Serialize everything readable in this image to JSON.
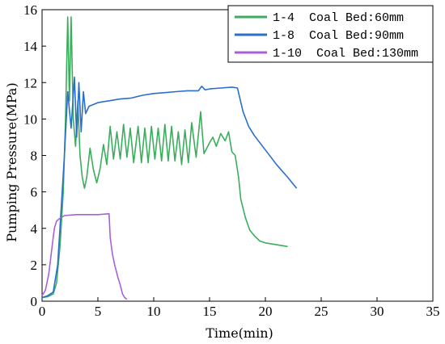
{
  "chart_data": {
    "type": "line",
    "xlabel": "Time(min)",
    "ylabel": "Pumping Pressure(MPa)",
    "xlim": [
      0,
      35
    ],
    "ylim": [
      0,
      16
    ],
    "xticks": [
      0,
      5,
      10,
      15,
      20,
      25,
      30,
      35
    ],
    "yticks": [
      0,
      2,
      4,
      6,
      8,
      10,
      12,
      14,
      16
    ],
    "grid": false,
    "legend_position": "top-right",
    "series": [
      {
        "name": "1-4  Coal Bed:60mm",
        "color": "#3aae5c",
        "points": [
          [
            0,
            0.2
          ],
          [
            0.5,
            0.25
          ],
          [
            1,
            0.4
          ],
          [
            1.3,
            1
          ],
          [
            1.6,
            3
          ],
          [
            1.9,
            6
          ],
          [
            2.1,
            10
          ],
          [
            2.3,
            15.6
          ],
          [
            2.45,
            11
          ],
          [
            2.6,
            15.6
          ],
          [
            2.8,
            10
          ],
          [
            3,
            8.5
          ],
          [
            3.2,
            11
          ],
          [
            3.4,
            8
          ],
          [
            3.6,
            6.8
          ],
          [
            3.8,
            6.2
          ],
          [
            4.0,
            6.8
          ],
          [
            4.3,
            8.4
          ],
          [
            4.6,
            7.2
          ],
          [
            4.9,
            6.5
          ],
          [
            5.2,
            7.3
          ],
          [
            5.5,
            8.6
          ],
          [
            5.8,
            7.5
          ],
          [
            6.1,
            9.6
          ],
          [
            6.4,
            7.8
          ],
          [
            6.7,
            9.3
          ],
          [
            7.0,
            7.8
          ],
          [
            7.3,
            9.7
          ],
          [
            7.6,
            7.9
          ],
          [
            7.9,
            9.5
          ],
          [
            8.2,
            7.6
          ],
          [
            8.6,
            9.6
          ],
          [
            8.9,
            7.6
          ],
          [
            9.2,
            9.5
          ],
          [
            9.5,
            7.6
          ],
          [
            9.8,
            9.6
          ],
          [
            10.1,
            7.8
          ],
          [
            10.4,
            9.5
          ],
          [
            10.7,
            7.7
          ],
          [
            11.0,
            9.7
          ],
          [
            11.3,
            7.7
          ],
          [
            11.6,
            9.6
          ],
          [
            11.9,
            7.7
          ],
          [
            12.2,
            9.3
          ],
          [
            12.5,
            7.5
          ],
          [
            12.8,
            9.4
          ],
          [
            13.1,
            7.6
          ],
          [
            13.4,
            9.8
          ],
          [
            13.8,
            7.9
          ],
          [
            14.2,
            10.4
          ],
          [
            14.5,
            8.1
          ],
          [
            15.0,
            8.7
          ],
          [
            15.3,
            9.0
          ],
          [
            15.6,
            8.5
          ],
          [
            16.0,
            9.2
          ],
          [
            16.4,
            8.8
          ],
          [
            16.7,
            9.3
          ],
          [
            17.0,
            8.2
          ],
          [
            17.3,
            8.0
          ],
          [
            17.6,
            6.8
          ],
          [
            17.8,
            5.6
          ],
          [
            18.2,
            4.6
          ],
          [
            18.6,
            3.9
          ],
          [
            19.0,
            3.6
          ],
          [
            19.5,
            3.3
          ],
          [
            20.0,
            3.2
          ],
          [
            20.5,
            3.15
          ],
          [
            21.0,
            3.1
          ],
          [
            22.0,
            3.0
          ]
        ]
      },
      {
        "name": "1-8  Coal Bed:90mm",
        "color": "#2a6fcc",
        "points": [
          [
            0,
            0.2
          ],
          [
            0.5,
            0.3
          ],
          [
            1,
            0.5
          ],
          [
            1.4,
            2
          ],
          [
            1.7,
            5
          ],
          [
            2.0,
            8
          ],
          [
            2.3,
            11.5
          ],
          [
            2.6,
            9.5
          ],
          [
            2.9,
            12.3
          ],
          [
            3.1,
            9.0
          ],
          [
            3.3,
            12
          ],
          [
            3.5,
            9.3
          ],
          [
            3.7,
            11.5
          ],
          [
            3.9,
            10.3
          ],
          [
            4.2,
            10.7
          ],
          [
            5.0,
            10.9
          ],
          [
            6.0,
            11.0
          ],
          [
            7.0,
            11.1
          ],
          [
            8.0,
            11.15
          ],
          [
            9.0,
            11.3
          ],
          [
            10.0,
            11.4
          ],
          [
            11.0,
            11.45
          ],
          [
            12.0,
            11.5
          ],
          [
            13.0,
            11.55
          ],
          [
            14.0,
            11.55
          ],
          [
            14.3,
            11.8
          ],
          [
            14.6,
            11.6
          ],
          [
            15.0,
            11.65
          ],
          [
            16.0,
            11.7
          ],
          [
            17.0,
            11.75
          ],
          [
            17.5,
            11.7
          ],
          [
            18.0,
            10.4
          ],
          [
            18.5,
            9.6
          ],
          [
            19.0,
            9.1
          ],
          [
            20.0,
            8.3
          ],
          [
            21.0,
            7.5
          ],
          [
            22.0,
            6.8
          ],
          [
            22.8,
            6.2
          ]
        ]
      },
      {
        "name": "1-10  Coal Bed:130mm",
        "color": "#a860d8",
        "points": [
          [
            0,
            0.3
          ],
          [
            0.3,
            0.6
          ],
          [
            0.6,
            1.5
          ],
          [
            0.9,
            3
          ],
          [
            1.1,
            4
          ],
          [
            1.3,
            4.4
          ],
          [
            1.6,
            4.55
          ],
          [
            2.0,
            4.7
          ],
          [
            3.0,
            4.75
          ],
          [
            4.0,
            4.75
          ],
          [
            5.0,
            4.75
          ],
          [
            6.0,
            4.8
          ],
          [
            6.1,
            3.5
          ],
          [
            6.3,
            2.6
          ],
          [
            6.5,
            2
          ],
          [
            6.8,
            1.3
          ],
          [
            7.0,
            0.9
          ],
          [
            7.2,
            0.4
          ],
          [
            7.4,
            0.2
          ],
          [
            7.6,
            0.1
          ]
        ]
      }
    ]
  }
}
